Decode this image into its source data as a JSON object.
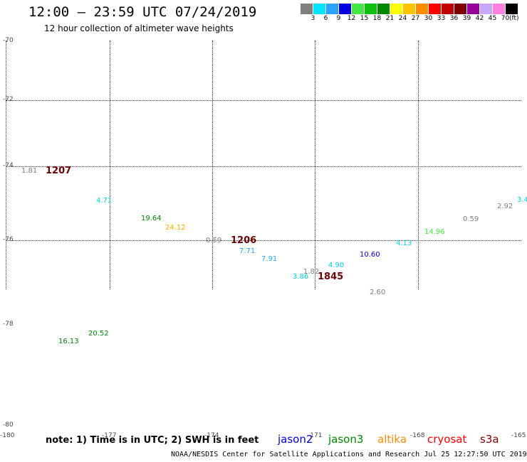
{
  "header": {
    "title": "12:00 — 23:59 UTC 07/24/2019",
    "subtitle": "12 hour collection of altimeter wave heights"
  },
  "legend": {
    "unit": "(ft)",
    "swatches": [
      {
        "color": "#7f7f7f",
        "label": "3"
      },
      {
        "color": "#00e5ff",
        "label": "6"
      },
      {
        "color": "#2aa3ff",
        "label": "9"
      },
      {
        "color": "#0000dd",
        "label": "12"
      },
      {
        "color": "#44e844",
        "label": "15"
      },
      {
        "color": "#10c010",
        "label": "18"
      },
      {
        "color": "#008800",
        "label": "21"
      },
      {
        "color": "#ffff00",
        "label": "24"
      },
      {
        "color": "#ffc400",
        "label": "27"
      },
      {
        "color": "#ff8c00",
        "label": "30"
      },
      {
        "color": "#ff0000",
        "label": "33"
      },
      {
        "color": "#c00000",
        "label": "36"
      },
      {
        "color": "#800000",
        "label": "39"
      },
      {
        "color": "#990099",
        "label": "42"
      },
      {
        "color": "#c8a8ff",
        "label": "45"
      },
      {
        "color": "#ff80e0",
        "label": "70"
      },
      {
        "color": "#000000",
        "label": ""
      }
    ]
  },
  "map": {
    "latitudes": [
      "-70",
      "-72",
      "-74",
      "-76",
      "-78",
      "-80"
    ],
    "longitudes": [
      "-180",
      "-177",
      "-174",
      "-171",
      "-168",
      "-165"
    ],
    "wave_heights": [
      {
        "text": "1.81",
        "color": "#7f7f7f"
      },
      {
        "text": "4.71",
        "color": "#00d0e0"
      },
      {
        "text": "19.64",
        "color": "#008800"
      },
      {
        "text": "24.12",
        "color": "#ffb000"
      },
      {
        "text": "0.59",
        "color": "#7f7f7f"
      },
      {
        "text": "7.71",
        "color": "#2aa3ff"
      },
      {
        "text": "7.91",
        "color": "#2aa3ff"
      },
      {
        "text": "3.86",
        "color": "#00d0e0"
      },
      {
        "text": "1.82",
        "color": "#7f7f7f"
      },
      {
        "text": "4.90",
        "color": "#00d0e0"
      },
      {
        "text": "10.60",
        "color": "#0000dd"
      },
      {
        "text": "2.60",
        "color": "#7f7f7f"
      },
      {
        "text": "4.13",
        "color": "#00d0e0"
      },
      {
        "text": "14.96",
        "color": "#44e844"
      },
      {
        "text": "0.59",
        "color": "#7f7f7f"
      },
      {
        "text": "2.92",
        "color": "#7f7f7f"
      },
      {
        "text": "3.4",
        "color": "#00d0e0"
      },
      {
        "text": "20.52",
        "color": "#008800"
      },
      {
        "text": "16.13",
        "color": "#008800"
      }
    ],
    "pass_times": [
      "1207",
      "1206",
      "1845"
    ]
  },
  "bottom": {
    "note": "note: 1) Time is in UTC; 2) SWH is in feet",
    "satellites": [
      {
        "name": "jason2",
        "color": "#0000dd"
      },
      {
        "name": "jason3",
        "color": "#008800"
      },
      {
        "name": "altika",
        "color": "#ff8c00"
      },
      {
        "name": "cryosat",
        "color": "#ff0000"
      },
      {
        "name": "s3a",
        "color": "#800000"
      }
    ],
    "footer": "NOAA/NESDIS Center for Satellite Applications and Research    Jul 25 12:27:50 UTC 2019"
  }
}
